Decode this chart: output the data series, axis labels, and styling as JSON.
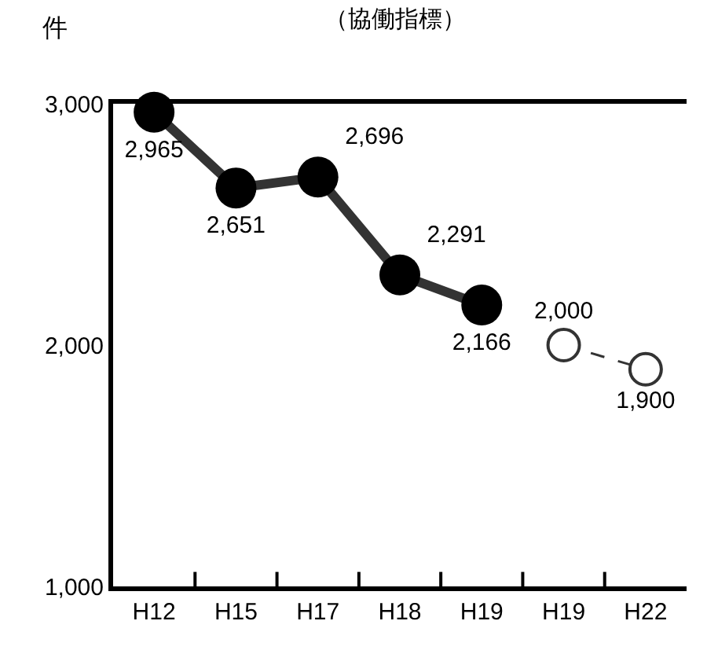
{
  "chart_data": {
    "type": "line",
    "title": "（協働指標）",
    "ylabel": "件",
    "categories": [
      "H12",
      "H15",
      "H17",
      "H18",
      "H19",
      "H19",
      "H22"
    ],
    "series": [
      {
        "color": "#333333",
        "line_style": "solid",
        "values": [
          2965,
          2651,
          2696,
          2291,
          2166,
          null,
          null
        ],
        "value_labels": [
          "2,965",
          "2,651",
          "2,696",
          "2,291",
          "2,166",
          null,
          null
        ]
      },
      {
        "color": "#333333",
        "line_style": "dashed",
        "values": [
          null,
          null,
          null,
          null,
          null,
          2000,
          1900
        ],
        "value_labels": [
          null,
          null,
          null,
          null,
          null,
          "2,000",
          "1,900"
        ]
      }
    ],
    "ylim": [
      1000,
      3000
    ],
    "yticks": [
      {
        "value": 1000,
        "label": "1,000"
      },
      {
        "value": 2000,
        "label": "2,000"
      },
      {
        "value": 3000,
        "label": "3,000"
      }
    ],
    "marker": "circle"
  }
}
